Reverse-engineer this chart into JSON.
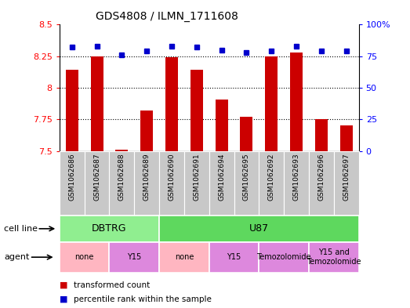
{
  "title": "GDS4808 / ILMN_1711608",
  "samples": [
    "GSM1062686",
    "GSM1062687",
    "GSM1062688",
    "GSM1062689",
    "GSM1062690",
    "GSM1062691",
    "GSM1062694",
    "GSM1062695",
    "GSM1062692",
    "GSM1062693",
    "GSM1062696",
    "GSM1062697"
  ],
  "red_values": [
    8.14,
    8.25,
    7.51,
    7.82,
    8.24,
    8.14,
    7.91,
    7.77,
    8.25,
    8.28,
    7.75,
    7.7
  ],
  "blue_values": [
    82,
    83,
    76,
    79,
    83,
    82,
    80,
    78,
    79,
    83,
    79,
    79
  ],
  "ylim_left": [
    7.5,
    8.5
  ],
  "ylim_right": [
    0,
    100
  ],
  "yticks_left": [
    7.5,
    7.75,
    8.0,
    8.25,
    8.5
  ],
  "yticks_right": [
    0,
    25,
    50,
    75,
    100
  ],
  "ytick_labels_left": [
    "7.5",
    "7.75",
    "8",
    "8.25",
    "8.5"
  ],
  "ytick_labels_right": [
    "0",
    "25",
    "50",
    "75",
    "100%"
  ],
  "cell_line_groups": [
    {
      "label": "DBTRG",
      "start": 0,
      "end": 3,
      "color": "#90EE90"
    },
    {
      "label": "U87",
      "start": 4,
      "end": 11,
      "color": "#5ED85E"
    }
  ],
  "agent_groups": [
    {
      "label": "none",
      "start": 0,
      "end": 1,
      "color": "#FFB6C1"
    },
    {
      "label": "Y15",
      "start": 2,
      "end": 3,
      "color": "#DD88DD"
    },
    {
      "label": "none",
      "start": 4,
      "end": 5,
      "color": "#FFB6C1"
    },
    {
      "label": "Y15",
      "start": 6,
      "end": 7,
      "color": "#DD88DD"
    },
    {
      "label": "Temozolomide",
      "start": 8,
      "end": 9,
      "color": "#DD88DD"
    },
    {
      "label": "Y15 and\nTemozolomide",
      "start": 10,
      "end": 11,
      "color": "#DD88DD"
    }
  ],
  "red_color": "#CC0000",
  "blue_color": "#0000CC",
  "bar_width": 0.5,
  "tick_box_color": "#C8C8C8",
  "legend_red": "transformed count",
  "legend_blue": "percentile rank within the sample",
  "bg_color": "#FFFFFF"
}
